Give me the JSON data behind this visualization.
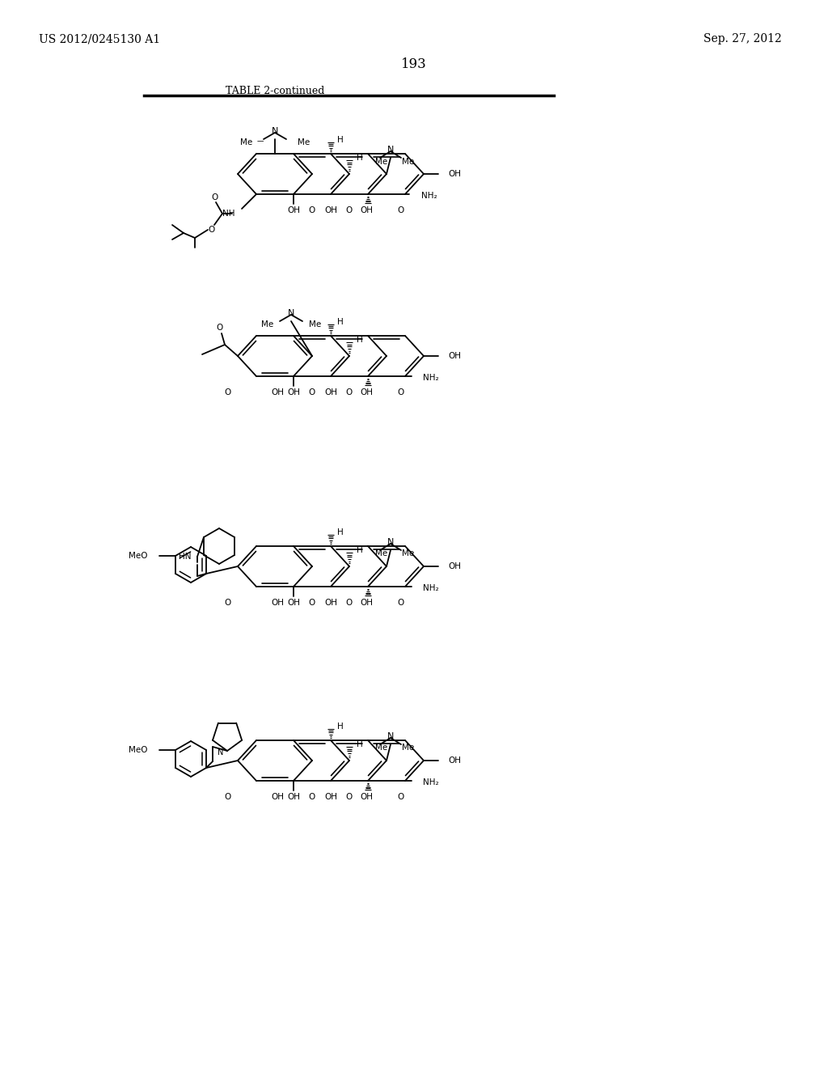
{
  "patent_number": "US 2012/0245130 A1",
  "date": "Sep. 27, 2012",
  "page_number": "193",
  "table_label": "TABLE 2-continued",
  "bg": "#ffffff",
  "fg": "#000000"
}
